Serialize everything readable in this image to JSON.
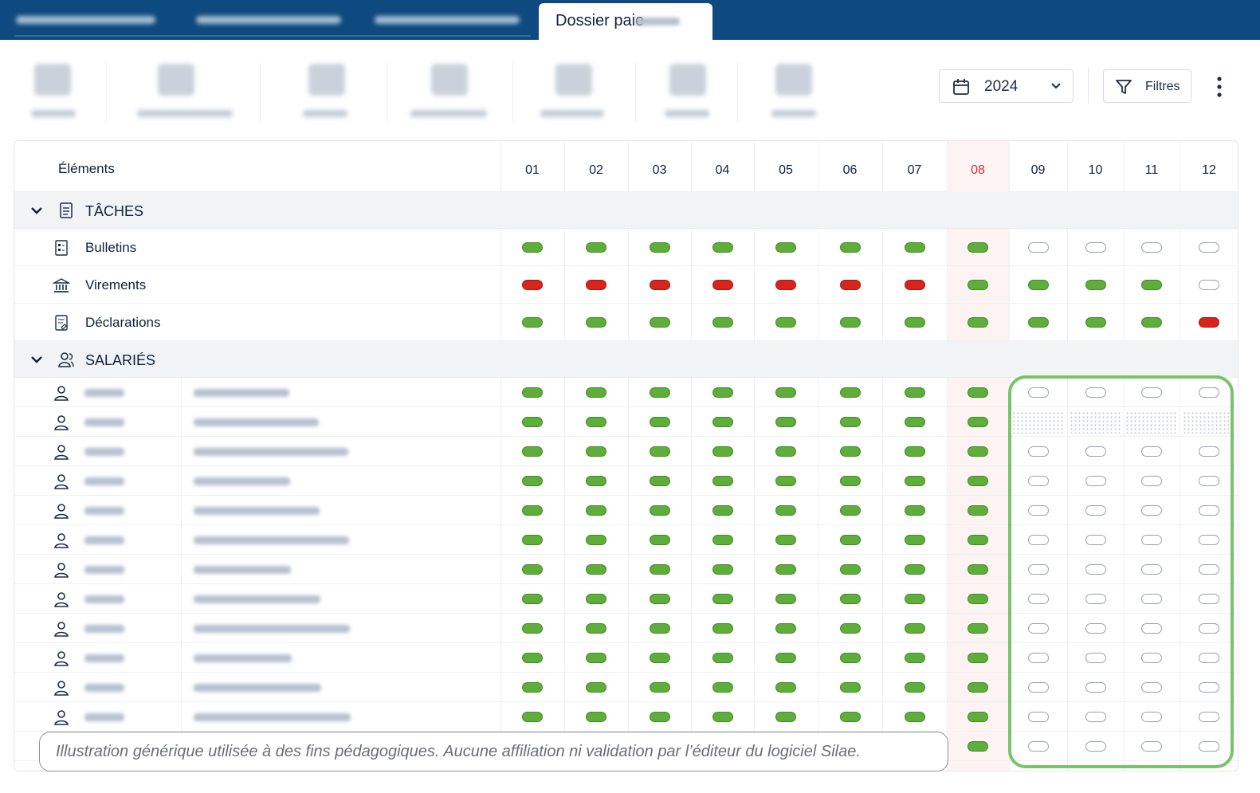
{
  "tab": {
    "title": "Dossier paie"
  },
  "toolbar": {
    "year": "2024",
    "filters": "Filtres"
  },
  "table": {
    "header": "Éléments",
    "months": [
      "01",
      "02",
      "03",
      "04",
      "05",
      "06",
      "07",
      "08",
      "09",
      "10",
      "11",
      "12"
    ],
    "current_month_index": 7,
    "sections": [
      {
        "title": "TÂCHES",
        "rows": [
          {
            "label": "Bulletins",
            "statuses": [
              "ok",
              "ok",
              "ok",
              "ok",
              "ok",
              "ok",
              "ok",
              "ok",
              "empty",
              "empty",
              "empty",
              "empty"
            ]
          },
          {
            "label": "Virements",
            "statuses": [
              "ko",
              "ko",
              "ko",
              "ko",
              "ko",
              "ko",
              "ko",
              "ok",
              "ok",
              "ok",
              "ok",
              "empty"
            ]
          },
          {
            "label": "Déclarations",
            "statuses": [
              "ok",
              "ok",
              "ok",
              "ok",
              "ok",
              "ok",
              "ok",
              "ok",
              "ok",
              "ok",
              "ok",
              "ko"
            ]
          }
        ]
      },
      {
        "title": "SALARIÉS",
        "rows": [
          {
            "statuses": [
              "ok",
              "ok",
              "ok",
              "ok",
              "ok",
              "ok",
              "ok",
              "ok",
              "empty",
              "empty",
              "empty",
              "empty"
            ]
          },
          {
            "statuses": [
              "ok",
              "ok",
              "ok",
              "ok",
              "ok",
              "ok",
              "ok",
              "ok",
              "pending",
              "pending",
              "pending",
              "pending"
            ]
          },
          {
            "statuses": [
              "ok",
              "ok",
              "ok",
              "ok",
              "ok",
              "ok",
              "ok",
              "ok",
              "empty",
              "empty",
              "empty",
              "empty"
            ]
          },
          {
            "statuses": [
              "ok",
              "ok",
              "ok",
              "ok",
              "ok",
              "ok",
              "ok",
              "ok",
              "empty",
              "empty",
              "empty",
              "empty"
            ]
          },
          {
            "statuses": [
              "ok",
              "ok",
              "ok",
              "ok",
              "ok",
              "ok",
              "ok",
              "ok",
              "empty",
              "empty",
              "empty",
              "empty"
            ]
          },
          {
            "statuses": [
              "ok",
              "ok",
              "ok",
              "ok",
              "ok",
              "ok",
              "ok",
              "ok",
              "empty",
              "empty",
              "empty",
              "empty"
            ]
          },
          {
            "statuses": [
              "ok",
              "ok",
              "ok",
              "ok",
              "ok",
              "ok",
              "ok",
              "ok",
              "empty",
              "empty",
              "empty",
              "empty"
            ]
          },
          {
            "statuses": [
              "ok",
              "ok",
              "ok",
              "ok",
              "ok",
              "ok",
              "ok",
              "ok",
              "empty",
              "empty",
              "empty",
              "empty"
            ]
          },
          {
            "statuses": [
              "ok",
              "ok",
              "ok",
              "ok",
              "ok",
              "ok",
              "ok",
              "ok",
              "empty",
              "empty",
              "empty",
              "empty"
            ]
          },
          {
            "statuses": [
              "ok",
              "ok",
              "ok",
              "ok",
              "ok",
              "ok",
              "ok",
              "ok",
              "empty",
              "empty",
              "empty",
              "empty"
            ]
          },
          {
            "statuses": [
              "ok",
              "ok",
              "ok",
              "ok",
              "ok",
              "ok",
              "ok",
              "ok",
              "empty",
              "empty",
              "empty",
              "empty"
            ]
          },
          {
            "statuses": [
              "ok",
              "ok",
              "ok",
              "ok",
              "ok",
              "ok",
              "ok",
              "ok",
              "empty",
              "empty",
              "empty",
              "empty"
            ]
          },
          {
            "statuses": [
              null,
              null,
              null,
              null,
              null,
              null,
              null,
              "ok",
              "empty",
              "empty",
              "empty",
              "empty"
            ]
          }
        ]
      }
    ]
  },
  "disclaimer": "Illustration générique utilisée à des fins pédagogiques. Aucune affiliation ni validation par l’éditeur du logiciel Silae."
}
